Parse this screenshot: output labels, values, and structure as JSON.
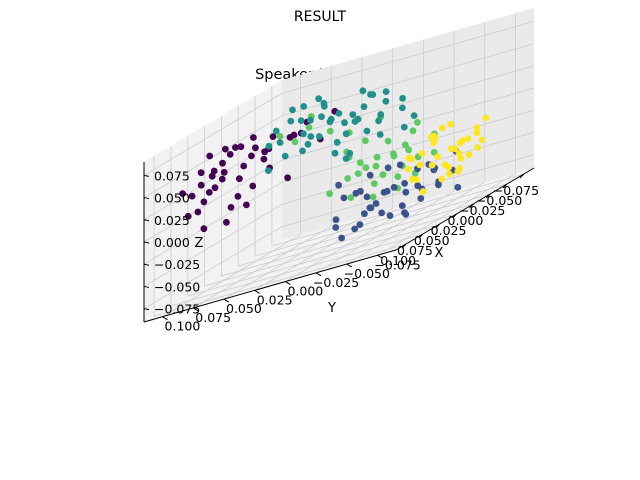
{
  "figure": {
    "suptitle": "RESULT"
  },
  "chart_data": {
    "type": "scatter",
    "projection": "3d",
    "title": "Speaker Embedding",
    "xlabel": "X",
    "ylabel": "Y",
    "zlabel": "Z",
    "xlim": [
      -0.09,
      0.115
    ],
    "ylim": [
      -0.09,
      0.115
    ],
    "zlim": [
      -0.09,
      0.09
    ],
    "xticks": [
      "−0.075",
      "−0.050",
      "−0.025",
      "0.000",
      "0.025",
      "0.050",
      "0.075",
      "0.100"
    ],
    "yticks": [
      "−0.075",
      "−0.050",
      "−0.025",
      "0.000",
      "0.025",
      "0.050",
      "0.075",
      "0.100"
    ],
    "zticks": [
      "−0.075",
      "−0.050",
      "−0.025",
      "0.000",
      "0.025",
      "0.050",
      "0.075"
    ],
    "xtick_values": [
      -0.075,
      -0.05,
      -0.025,
      0,
      0.025,
      0.05,
      0.075,
      0.1
    ],
    "ytick_values": [
      -0.075,
      -0.05,
      -0.025,
      0,
      0.025,
      0.05,
      0.075,
      0.1
    ],
    "ztick_values": [
      -0.075,
      -0.05,
      -0.025,
      0,
      0.025,
      0.05,
      0.075
    ],
    "grid": true,
    "pane_color": "#f2f2f2",
    "grid_color": "#cccccc",
    "colormap": "viridis",
    "series": [
      {
        "color": "#440154",
        "points": [
          [
            0.066,
            0.078,
            0.052
          ],
          [
            0.071,
            0.082,
            0.047
          ],
          [
            0.06,
            0.075,
            0.058
          ],
          [
            0.078,
            0.07,
            0.044
          ],
          [
            0.055,
            0.069,
            0.062
          ],
          [
            0.083,
            0.086,
            0.038
          ],
          [
            0.05,
            0.06,
            0.055
          ],
          [
            0.074,
            0.091,
            0.05
          ],
          [
            0.042,
            0.05,
            0.06
          ],
          [
            0.088,
            0.072,
            0.032
          ],
          [
            0.063,
            0.088,
            0.04
          ],
          [
            0.035,
            0.04,
            0.052
          ],
          [
            0.07,
            0.062,
            0.03
          ],
          [
            0.058,
            0.08,
            0.065
          ],
          [
            0.045,
            0.066,
            0.046
          ],
          [
            0.08,
            0.095,
            0.028
          ],
          [
            0.09,
            0.08,
            0.02
          ],
          [
            0.076,
            0.06,
            0.012
          ],
          [
            0.052,
            0.052,
            0.04
          ],
          [
            0.04,
            0.075,
            0.036
          ],
          [
            0.03,
            0.06,
            0.045
          ],
          [
            0.068,
            0.07,
            0.0
          ],
          [
            0.06,
            0.092,
            0.022
          ],
          [
            0.085,
            0.1,
            0.035
          ],
          [
            0.02,
            0.045,
            0.05
          ],
          [
            0.095,
            0.09,
            0.01
          ],
          [
            0.048,
            0.088,
            0.03
          ],
          [
            0.072,
            0.05,
            0.018
          ],
          [
            0.056,
            0.064,
            -0.005
          ],
          [
            0.082,
            0.066,
            -0.012
          ],
          [
            0.038,
            0.055,
            0.025
          ],
          [
            0.066,
            0.098,
            0.005
          ],
          [
            0.099,
            0.075,
            -0.008
          ],
          [
            0.046,
            0.036,
            0.01
          ],
          [
            0.028,
            0.03,
            0.062
          ],
          [
            0.062,
            0.055,
            0.07
          ],
          [
            0.018,
            0.07,
            0.04
          ],
          [
            -0.01,
            0.04,
            0.03
          ],
          [
            0.005,
            0.02,
            0.06
          ],
          [
            0.0,
            0.05,
            0.045
          ],
          [
            0.034,
            0.085,
            0.058
          ],
          [
            0.074,
            0.084,
            0.066
          ]
        ]
      },
      {
        "color": "#3b528b",
        "points": [
          [
            0.02,
            -0.045,
            -0.04
          ],
          [
            0.035,
            -0.03,
            -0.05
          ],
          [
            0.01,
            -0.05,
            -0.03
          ],
          [
            0.045,
            -0.04,
            -0.06
          ],
          [
            0.028,
            -0.06,
            -0.045
          ],
          [
            0.0,
            -0.035,
            -0.055
          ],
          [
            0.055,
            -0.05,
            -0.035
          ],
          [
            0.04,
            -0.02,
            -0.03
          ],
          [
            0.015,
            -0.07,
            -0.05
          ],
          [
            0.06,
            -0.065,
            -0.055
          ],
          [
            -0.005,
            -0.055,
            -0.04
          ],
          [
            0.03,
            -0.075,
            -0.03
          ],
          [
            0.05,
            -0.025,
            -0.065
          ],
          [
            0.07,
            -0.045,
            -0.045
          ],
          [
            0.025,
            -0.015,
            -0.06
          ],
          [
            0.008,
            -0.025,
            -0.02
          ],
          [
            0.065,
            -0.03,
            -0.025
          ],
          [
            0.042,
            -0.058,
            -0.07
          ],
          [
            -0.015,
            -0.04,
            -0.06
          ],
          [
            0.022,
            -0.085,
            -0.04
          ],
          [
            0.078,
            -0.06,
            -0.03
          ],
          [
            0.058,
            -0.01,
            -0.05
          ],
          [
            0.032,
            -0.048,
            -0.015
          ],
          [
            0.012,
            -0.01,
            -0.045
          ],
          [
            0.085,
            -0.04,
            -0.06
          ],
          [
            0.048,
            -0.08,
            -0.02
          ],
          [
            -0.02,
            -0.065,
            -0.03
          ],
          [
            0.038,
            -0.068,
            -0.058
          ],
          [
            0.068,
            -0.02,
            -0.07
          ],
          [
            0.005,
            -0.08,
            -0.065
          ],
          [
            0.09,
            -0.055,
            -0.04
          ],
          [
            0.018,
            -0.032,
            -0.072
          ],
          [
            0.075,
            -0.075,
            -0.06
          ],
          [
            0.052,
            -0.09,
            -0.045
          ],
          [
            -0.01,
            -0.02,
            -0.048
          ],
          [
            0.062,
            -0.04,
            -0.01
          ],
          [
            0.095,
            -0.03,
            -0.05
          ],
          [
            0.028,
            0.0,
            -0.035
          ],
          [
            0.045,
            -0.005,
            -0.015
          ]
        ]
      },
      {
        "color": "#21908d",
        "points": [
          [
            -0.04,
            0.03,
            0.04
          ],
          [
            -0.055,
            0.045,
            0.03
          ],
          [
            -0.03,
            0.05,
            0.05
          ],
          [
            -0.06,
            0.02,
            0.02
          ],
          [
            -0.045,
            0.06,
            0.025
          ],
          [
            -0.07,
            0.035,
            0.01
          ],
          [
            -0.025,
            0.02,
            0.035
          ],
          [
            -0.05,
            0.07,
            0.045
          ],
          [
            -0.065,
            0.055,
            0.04
          ],
          [
            -0.035,
            0.04,
            0.015
          ],
          [
            -0.075,
            0.045,
            0.025
          ],
          [
            -0.02,
            0.06,
            0.02
          ],
          [
            -0.045,
            0.01,
            0.03
          ],
          [
            -0.058,
            0.08,
            0.03
          ],
          [
            -0.08,
            0.025,
            0.035
          ],
          [
            -0.03,
            0.075,
            0.055
          ],
          [
            -0.015,
            0.035,
            0.045
          ],
          [
            -0.062,
            0.015,
            0.05
          ],
          [
            -0.04,
            0.085,
            0.015
          ],
          [
            -0.085,
            0.06,
            0.01
          ],
          [
            -0.05,
            0.05,
            0.0
          ],
          [
            -0.025,
            0.09,
            0.035
          ],
          [
            -0.07,
            0.07,
            0.055
          ],
          [
            -0.035,
            0.005,
            0.01
          ],
          [
            -0.01,
            0.05,
            0.028
          ],
          [
            -0.055,
            0.03,
            0.06
          ],
          [
            -0.078,
            0.085,
            0.02
          ],
          [
            -0.045,
            0.095,
            0.045
          ],
          [
            -0.068,
            0.005,
            0.025
          ],
          [
            -0.02,
            0.01,
            0.05
          ],
          [
            -0.088,
            0.04,
            0.045
          ],
          [
            -0.03,
            0.03,
            -0.005
          ],
          [
            -0.06,
            0.09,
            0.06
          ],
          [
            -0.005,
            0.07,
            0.04
          ],
          [
            -0.05,
            -0.005,
            0.04
          ],
          [
            -0.08,
            0.01,
            0.0
          ],
          [
            -0.04,
            0.07,
            0.065
          ],
          [
            -0.015,
            0.085,
            0.01
          ],
          [
            -0.072,
            0.05,
            -0.01
          ],
          [
            -0.035,
            0.055,
            0.07
          ],
          [
            -0.09,
            0.075,
            0.03
          ],
          [
            -0.058,
            -0.01,
            0.015
          ],
          [
            -0.025,
            0.045,
            0.062
          ],
          [
            -0.048,
            0.02,
            0.055
          ],
          [
            -0.082,
            0.095,
            0.04
          ]
        ]
      },
      {
        "color": "#5ec962",
        "points": [
          [
            0.07,
            -0.05,
            0.01
          ],
          [
            0.08,
            -0.04,
            0.0
          ],
          [
            0.06,
            -0.065,
            -0.01
          ],
          [
            0.09,
            -0.06,
            0.005
          ],
          [
            0.075,
            -0.03,
            0.02
          ],
          [
            0.085,
            -0.075,
            -0.015
          ],
          [
            0.065,
            -0.045,
            -0.02
          ],
          [
            0.095,
            -0.05,
            0.015
          ],
          [
            0.055,
            -0.055,
            0.005
          ],
          [
            0.078,
            -0.08,
            0.01
          ],
          [
            0.098,
            -0.07,
            -0.005
          ],
          [
            0.068,
            -0.025,
            -0.005
          ],
          [
            0.088,
            -0.035,
            0.03
          ],
          [
            0.05,
            -0.07,
            -0.025
          ],
          [
            0.082,
            -0.09,
            0.0
          ],
          [
            0.1,
            -0.045,
            -0.02
          ],
          [
            0.072,
            -0.06,
            0.025
          ],
          [
            0.092,
            -0.085,
            0.02
          ],
          [
            0.06,
            -0.035,
            0.03
          ],
          [
            0.045,
            -0.05,
            0.0
          ],
          [
            0.105,
            -0.06,
            0.01
          ],
          [
            0.076,
            -0.07,
            -0.03
          ],
          [
            0.04,
            -0.08,
            -0.01
          ],
          [
            0.058,
            -0.09,
            0.015
          ],
          [
            0.095,
            -0.025,
            -0.01
          ],
          [
            0.065,
            -0.08,
            0.035
          ],
          [
            0.085,
            -0.055,
            -0.03
          ],
          [
            0.035,
            -0.06,
            0.02
          ],
          [
            0.05,
            0.04,
            0.06
          ],
          [
            0.04,
            0.02,
            0.07
          ],
          [
            0.03,
            0.01,
            0.045
          ],
          [
            0.02,
            0.0,
            0.035
          ],
          [
            0.055,
            0.025,
            0.05
          ],
          [
            0.01,
            -0.02,
            0.04
          ],
          [
            0.025,
            0.03,
            0.055
          ]
        ]
      },
      {
        "color": "#fde725",
        "points": [
          [
            -0.04,
            -0.05,
            -0.03
          ],
          [
            -0.03,
            -0.04,
            -0.04
          ],
          [
            -0.05,
            -0.03,
            -0.02
          ],
          [
            -0.035,
            -0.06,
            -0.025
          ],
          [
            -0.025,
            -0.03,
            -0.05
          ],
          [
            -0.045,
            -0.055,
            -0.045
          ],
          [
            -0.055,
            -0.045,
            -0.035
          ],
          [
            -0.02,
            -0.05,
            -0.03
          ],
          [
            -0.038,
            -0.035,
            -0.01
          ],
          [
            -0.06,
            -0.06,
            -0.025
          ],
          [
            -0.03,
            -0.07,
            -0.04
          ],
          [
            -0.015,
            -0.04,
            -0.02
          ],
          [
            -0.048,
            -0.02,
            -0.04
          ],
          [
            -0.028,
            -0.055,
            -0.055
          ],
          [
            -0.042,
            -0.07,
            -0.015
          ],
          [
            -0.058,
            -0.035,
            -0.05
          ],
          [
            -0.022,
            -0.025,
            -0.035
          ],
          [
            -0.052,
            -0.065,
            -0.04
          ],
          [
            -0.035,
            -0.045,
            -0.06
          ],
          [
            -0.045,
            -0.04,
            -0.005
          ],
          [
            -0.065,
            -0.05,
            -0.03
          ],
          [
            -0.018,
            -0.06,
            -0.045
          ],
          [
            -0.032,
            -0.02,
            -0.025
          ],
          [
            -0.04,
            -0.075,
            -0.03
          ],
          [
            -0.06,
            -0.025,
            -0.015
          ],
          [
            -0.025,
            -0.045,
            -0.01
          ],
          [
            -0.05,
            -0.05,
            -0.06
          ],
          [
            -0.01,
            -0.035,
            -0.045
          ],
          [
            -0.07,
            -0.04,
            -0.045
          ],
          [
            -0.035,
            -0.03,
            -0.068
          ],
          [
            -0.055,
            -0.07,
            -0.01
          ],
          [
            -0.02,
            -0.07,
            -0.02
          ],
          [
            -0.045,
            -0.015,
            -0.03
          ],
          [
            -0.03,
            -0.055,
            0.0
          ],
          [
            -0.062,
            -0.045,
            -0.06
          ]
        ]
      }
    ]
  }
}
